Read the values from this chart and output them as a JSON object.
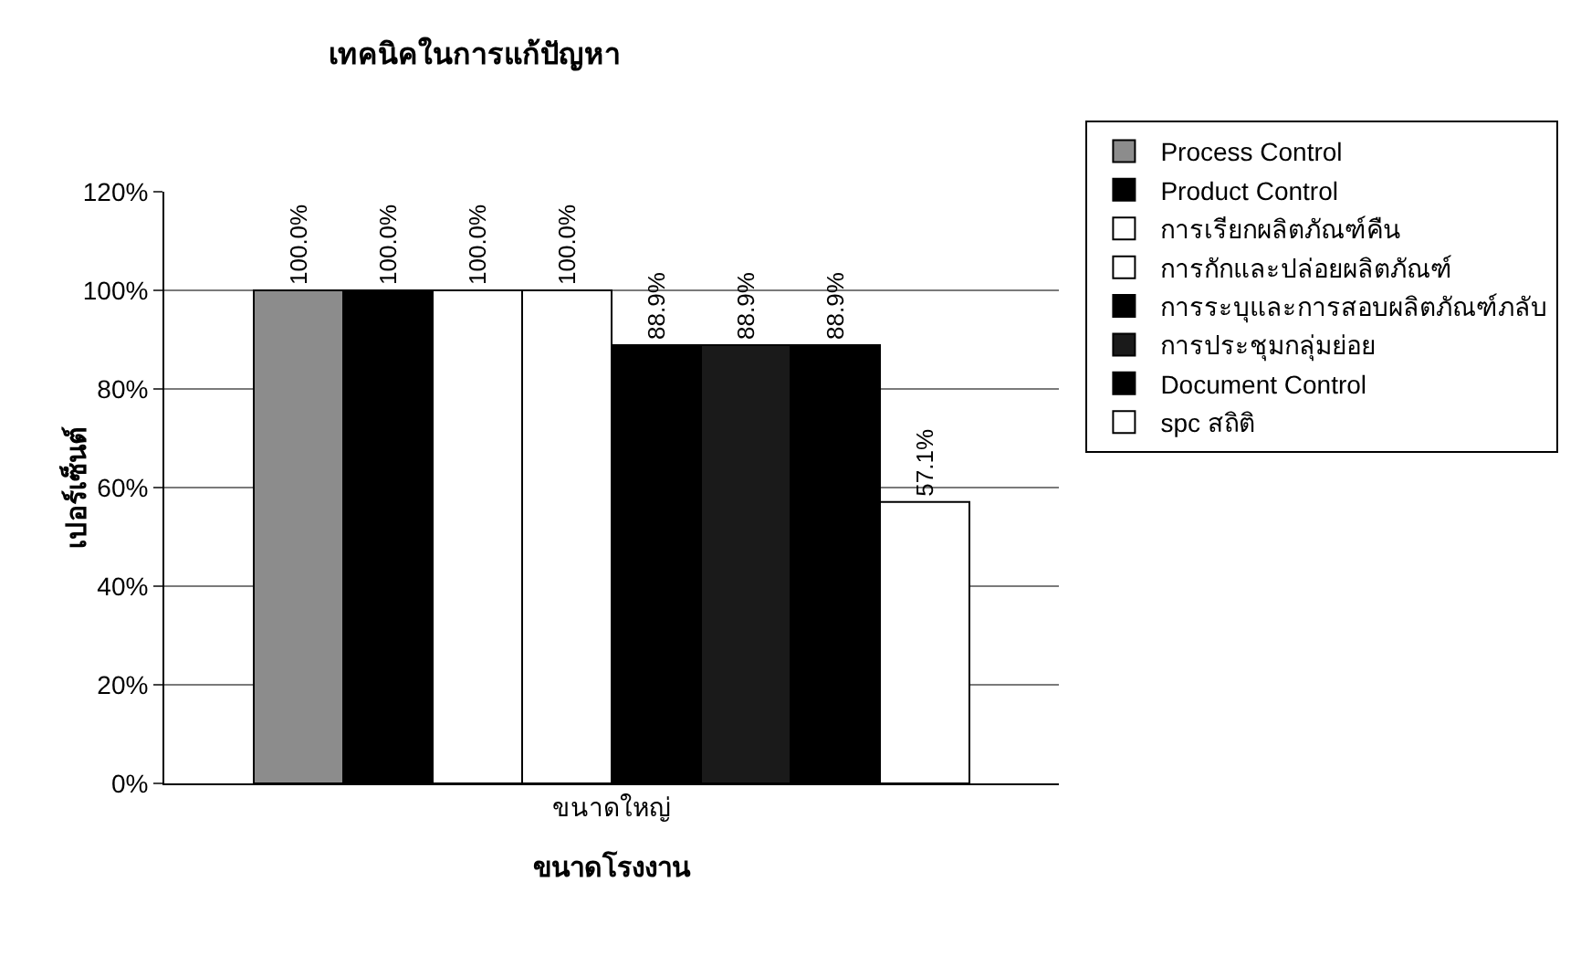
{
  "chart_data": {
    "type": "bar",
    "title": "เทคนิคในการแก้ปัญหา",
    "xlabel": "ขนาดโรงงาน",
    "ylabel": "เปอร์เซ็นต์",
    "categories": [
      "ขนาดใหญ่"
    ],
    "series": [
      {
        "name": "Process Control",
        "color": "#8c8c8c",
        "values": [
          100
        ],
        "value_labels": [
          "100.0%"
        ]
      },
      {
        "name": "Product Control",
        "color": "#000000",
        "values": [
          100
        ],
        "value_labels": [
          "100.0%"
        ]
      },
      {
        "name": "การเรียกผลิตภัณฑ์คืน",
        "color": "#ffffff",
        "values": [
          100
        ],
        "value_labels": [
          "100.0%"
        ]
      },
      {
        "name": "การกักและปล่อยผลิตภัณฑ์",
        "color": "#ffffff",
        "values": [
          100
        ],
        "value_labels": [
          "100.0%"
        ]
      },
      {
        "name": "การระบุและการสอบผลิตภัณฑ์ภลับ",
        "color": "#000000",
        "values": [
          88.9
        ],
        "value_labels": [
          "88.9%"
        ]
      },
      {
        "name": "การประชุมกลุ่มย่อย",
        "color": "#1a1a1a",
        "values": [
          88.9
        ],
        "value_labels": [
          "88.9%"
        ]
      },
      {
        "name": "Document Control",
        "color": "#000000",
        "values": [
          88.9
        ],
        "value_labels": [
          "88.9%"
        ]
      },
      {
        "name": "spc สถิติ",
        "color": "#ffffff",
        "values": [
          57.1
        ],
        "value_labels": [
          "57.1%"
        ]
      }
    ],
    "ylim": [
      0,
      120
    ],
    "yticks": [
      {
        "value": 0,
        "label": "0%"
      },
      {
        "value": 20,
        "label": "20%"
      },
      {
        "value": 40,
        "label": "40%"
      },
      {
        "value": 60,
        "label": "60%"
      },
      {
        "value": 80,
        "label": "80%"
      },
      {
        "value": 100,
        "label": "100%"
      },
      {
        "value": 120,
        "label": "120%"
      }
    ],
    "grid": "y",
    "legend": "right"
  }
}
